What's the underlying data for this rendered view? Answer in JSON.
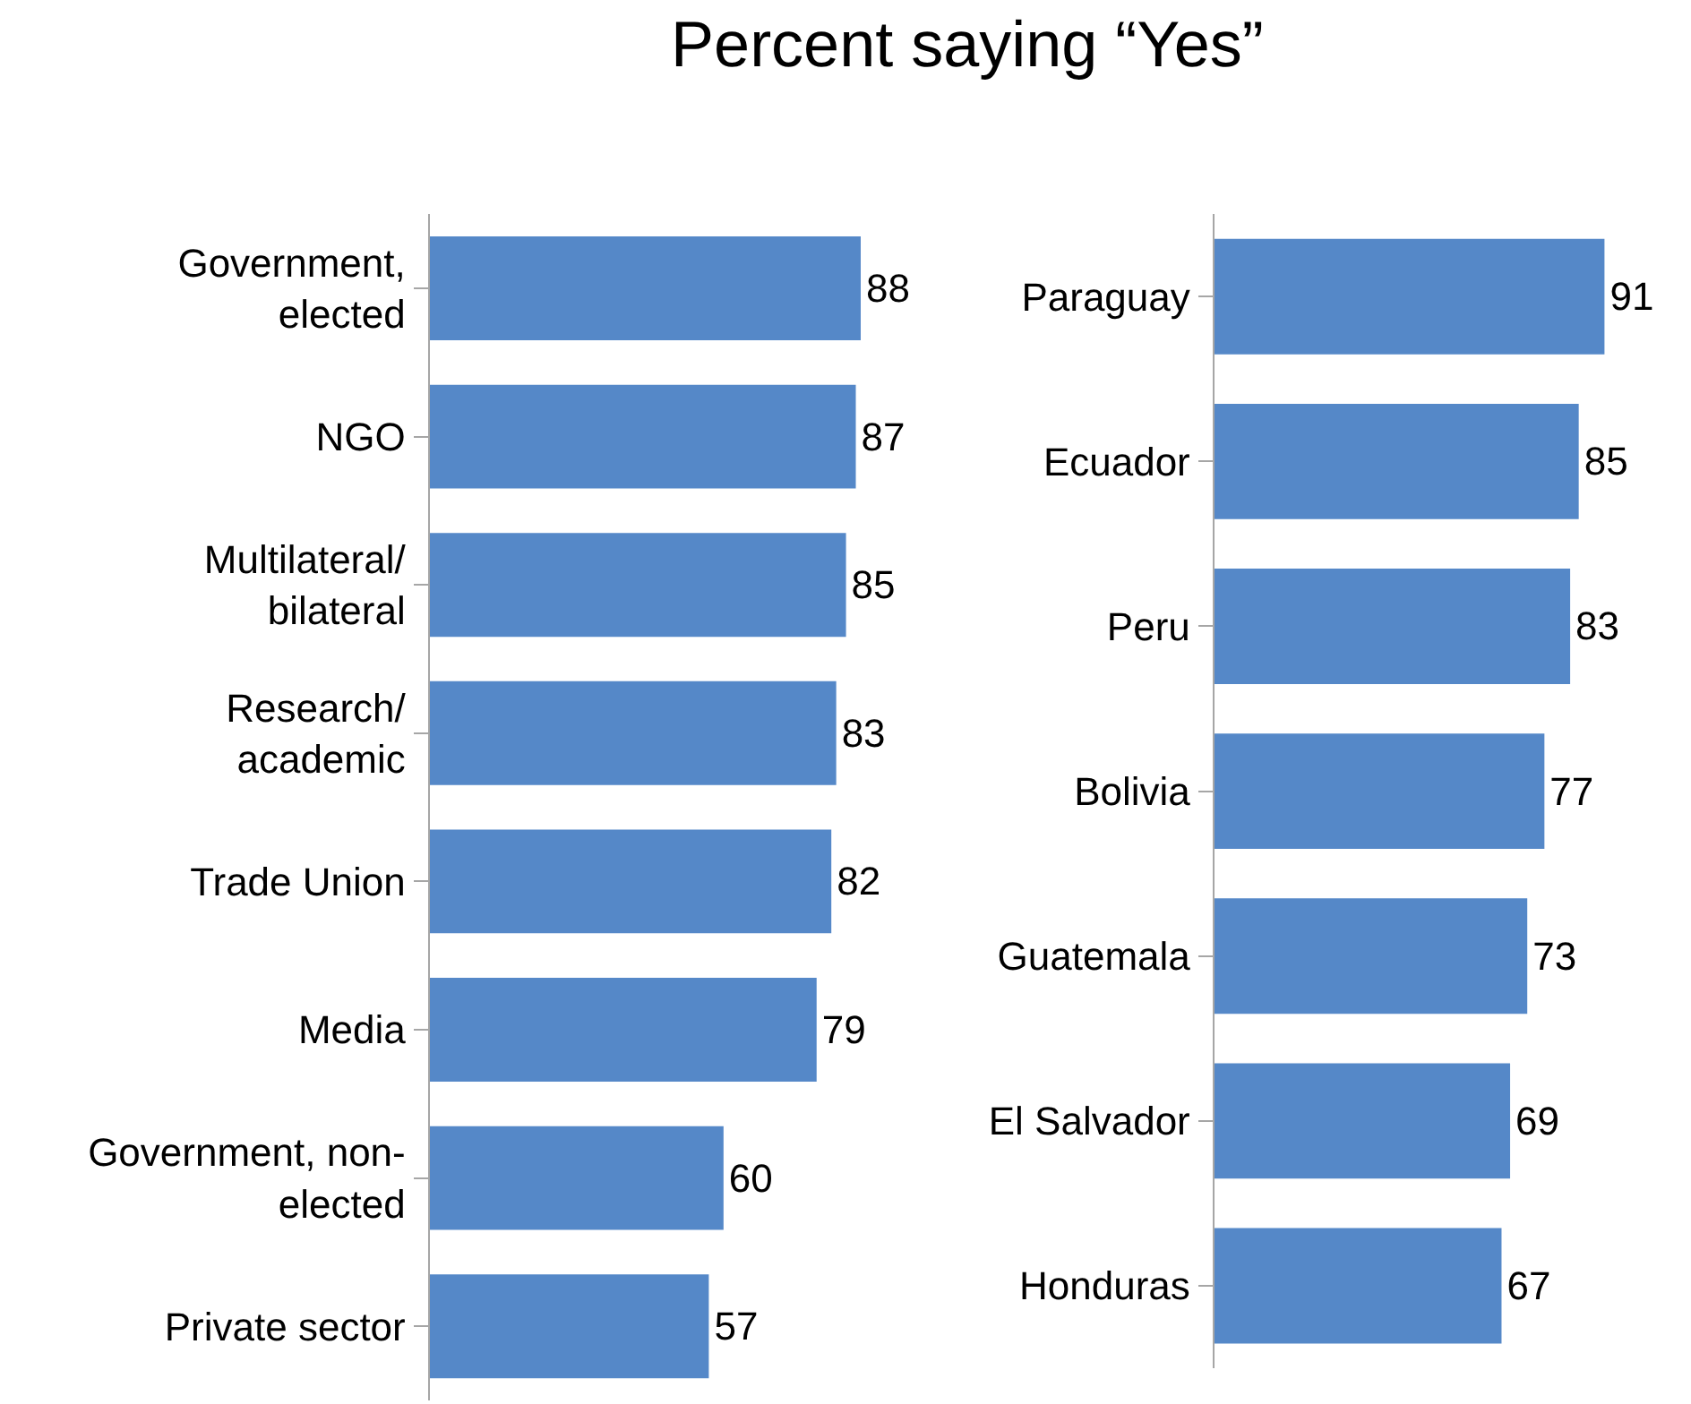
{
  "chart_data": [
    {
      "type": "bar",
      "orientation": "horizontal",
      "data_labels": true,
      "color": "#5588c8",
      "categories": [
        "Government,\nelected",
        "NGO",
        "Multilateral/\nbilateral",
        "Research/\nacademic",
        "Trade Union",
        "Media",
        "Government, non-\nelected",
        "Private sector"
      ],
      "values": [
        88,
        87,
        85,
        83,
        82,
        79,
        60,
        57
      ]
    },
    {
      "type": "bar",
      "orientation": "horizontal",
      "data_labels": true,
      "color": "#5588c8",
      "title": "Percent saying “Yes”",
      "categories": [
        "Paraguay",
        "Ecuador",
        "Peru",
        "Bolivia",
        "Guatemala",
        "El Salvador",
        "Honduras"
      ],
      "values": [
        91,
        85,
        83,
        77,
        73,
        69,
        67
      ]
    }
  ]
}
